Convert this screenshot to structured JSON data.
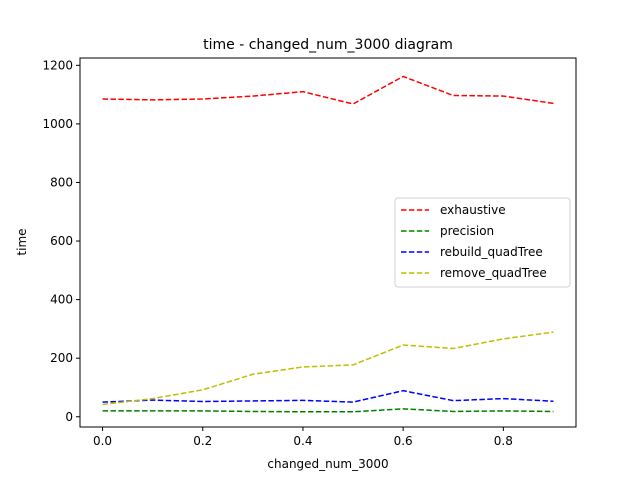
{
  "chart_data": {
    "type": "line",
    "title": "time - changed_num_3000 diagram",
    "xlabel": "changed_num_3000",
    "ylabel": "time",
    "xlim": [
      -0.045,
      0.945
    ],
    "ylim": [
      -35,
      1225
    ],
    "xticks": [
      0.0,
      0.2,
      0.4,
      0.6,
      0.8
    ],
    "xtick_labels": [
      "0.0",
      "0.2",
      "0.4",
      "0.6",
      "0.8"
    ],
    "yticks": [
      0,
      200,
      400,
      600,
      800,
      1000,
      1200
    ],
    "ytick_labels": [
      "0",
      "200",
      "400",
      "600",
      "800",
      "1000",
      "1200"
    ],
    "grid": false,
    "legend_position": "center-right",
    "x": [
      0.0,
      0.1,
      0.2,
      0.3,
      0.4,
      0.5,
      0.6,
      0.7,
      0.8,
      0.9
    ],
    "series": [
      {
        "name": "exhaustive",
        "color": "#ff0000",
        "values": [
          1085,
          1082,
          1085,
          1095,
          1110,
          1068,
          1162,
          1097,
          1095,
          1070
        ]
      },
      {
        "name": "precision",
        "color": "#008000",
        "values": [
          20,
          20,
          20,
          18,
          17,
          17,
          27,
          18,
          20,
          18
        ]
      },
      {
        "name": "rebuild_quadTree",
        "color": "#0000ff",
        "values": [
          50,
          57,
          52,
          54,
          56,
          50,
          89,
          55,
          62,
          53
        ]
      },
      {
        "name": "remove_quadTree",
        "color": "#bfbf00",
        "values": [
          42,
          62,
          92,
          145,
          170,
          177,
          245,
          233,
          266,
          289
        ]
      }
    ]
  }
}
